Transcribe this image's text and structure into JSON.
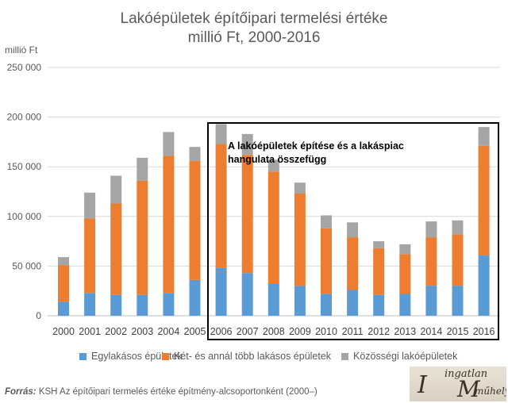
{
  "title_lines": [
    "Lakóépületek építőipari termelési értéke",
    "millió Ft, 2000-2016"
  ],
  "ylabel": "millió Ft",
  "annotation_lines": [
    "A lakóépületek építése és a lakáspiac",
    "hangulata összefügg"
  ],
  "source_label": "Forrás:",
  "source_text": "KSH Az építőipari termelés értéke építmény-alcsoportonként (2000–)",
  "stamp_text": [
    "ingatlan",
    "műhely"
  ],
  "colors": {
    "egy": "#5b9bd5",
    "ket": "#ed7d31",
    "koz": "#a5a5a5",
    "grid": "#d9d9d9"
  },
  "chart_data": {
    "type": "bar",
    "stacked": true,
    "categories": [
      "2000",
      "2001",
      "2002",
      "2003",
      "2004",
      "2005",
      "2006",
      "2007",
      "2008",
      "2009",
      "2010",
      "2011",
      "2012",
      "2013",
      "2014",
      "2015",
      "2016"
    ],
    "series": [
      {
        "name": "Egylakásos épületek",
        "values": [
          14000,
          23000,
          21000,
          21000,
          23000,
          36000,
          48000,
          43000,
          32000,
          30000,
          22000,
          26000,
          21000,
          22000,
          30000,
          30000,
          61000
        ]
      },
      {
        "name": "Két- és annál több lakásos épületek",
        "values": [
          37000,
          75000,
          92000,
          115000,
          138000,
          120000,
          125000,
          119000,
          113000,
          93000,
          66000,
          53000,
          47000,
          40000,
          49000,
          52000,
          110000
        ]
      },
      {
        "name": "Közösségi lakóépületek",
        "values": [
          8000,
          26000,
          28000,
          23000,
          24000,
          14000,
          20000,
          21000,
          12000,
          11000,
          13000,
          15000,
          7000,
          10000,
          16000,
          14000,
          19000
        ]
      }
    ],
    "yticks": [
      0,
      50000,
      100000,
      150000,
      200000,
      250000
    ],
    "ytick_labels": [
      "0",
      "50 000",
      "100 000",
      "150 000",
      "200 000",
      "250 000"
    ],
    "ylim": [
      0,
      250000
    ],
    "grid": true,
    "legend": "bottom"
  }
}
